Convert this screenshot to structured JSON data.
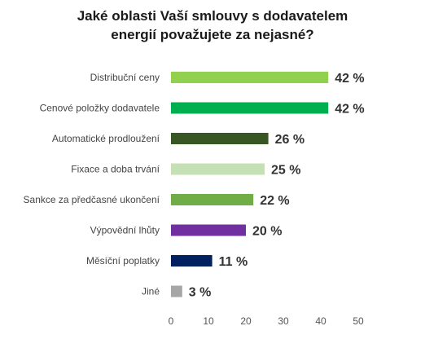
{
  "chart_data": {
    "type": "bar",
    "orientation": "horizontal",
    "title_lines": [
      "Jaké oblasti Vaší smlouvy s dodavatelem",
      "energií považujete za nejasné?"
    ],
    "categories": [
      "Distribuční ceny",
      "Cenové položky dodavatele",
      "Automatické prodloužení",
      "Fixace a doba trvání",
      "Sankce za předčasné ukončení",
      "Výpovědní lhůty",
      "Měsíční poplatky",
      "Jiné"
    ],
    "values": [
      42,
      42,
      26,
      25,
      22,
      20,
      11,
      3
    ],
    "value_labels": [
      "42 %",
      "42 %",
      "26 %",
      "25 %",
      "22 %",
      "20 %",
      "11 %",
      "3 %"
    ],
    "colors": [
      "#92d050",
      "#00b050",
      "#375623",
      "#c5e0b4",
      "#70ad47",
      "#7030a0",
      "#002060",
      "#a6a6a6"
    ],
    "xlim": [
      0,
      50
    ],
    "x_ticks": [
      0,
      10,
      20,
      30,
      40,
      50
    ],
    "grid": false,
    "legend": "none"
  }
}
